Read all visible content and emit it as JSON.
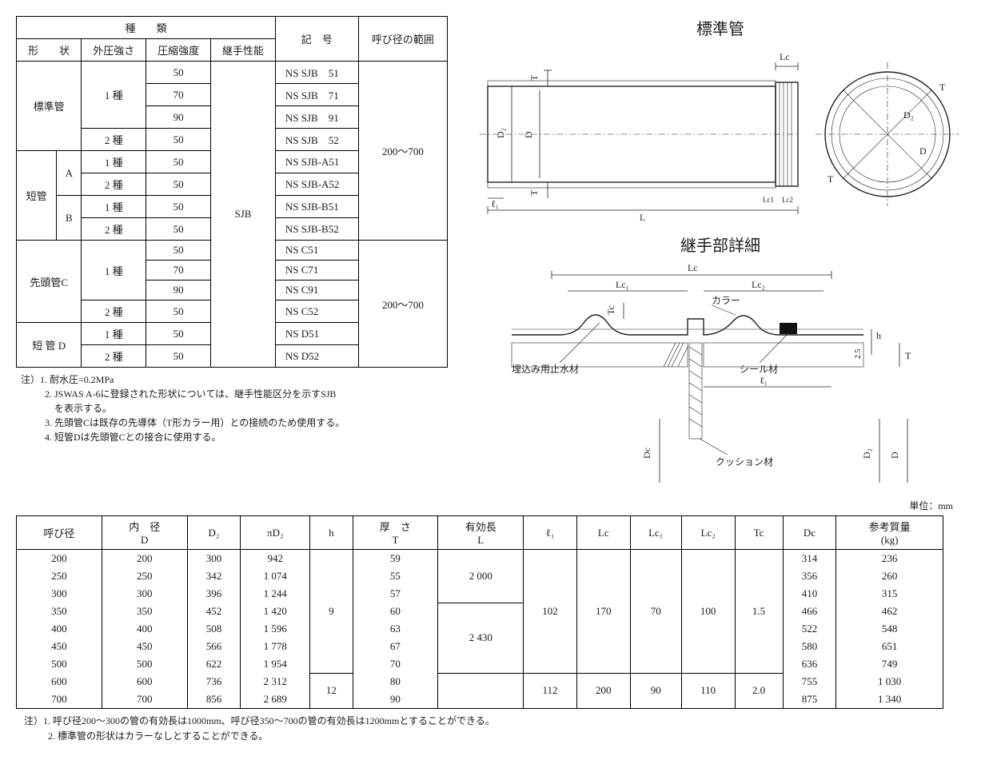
{
  "table1": {
    "headers": {
      "group": "種　　類",
      "shape": "形　　状",
      "ext_strength": "外圧強さ",
      "comp_strength": "圧縮強度",
      "joint_perf": "継手性能",
      "symbol": "記　号",
      "diam_range": "呼び径の範囲"
    },
    "rows": [
      {
        "shape": "標準管",
        "ext": "1 種",
        "comp": "50",
        "symbol": "NS SJB　51"
      },
      {
        "shape": "",
        "ext": "",
        "comp": "70",
        "symbol": "NS SJB　71"
      },
      {
        "shape": "",
        "ext": "",
        "comp": "90",
        "symbol": "NS SJB　91"
      },
      {
        "shape": "",
        "ext": "2 種",
        "comp": "50",
        "symbol": "NS SJB　52"
      },
      {
        "shape": "短管",
        "sub": "A",
        "ext": "1 種",
        "comp": "50",
        "symbol": "NS SJB-A51"
      },
      {
        "shape": "",
        "sub": "",
        "ext": "2 種",
        "comp": "50",
        "symbol": "NS SJB-A52"
      },
      {
        "shape": "",
        "sub": "B",
        "ext": "1 種",
        "comp": "50",
        "symbol": "NS SJB-B51"
      },
      {
        "shape": "",
        "sub": "",
        "ext": "2 種",
        "comp": "50",
        "symbol": "NS SJB-B52"
      },
      {
        "shape": "先頭管C",
        "ext": "1 種",
        "comp": "50",
        "symbol": "NS C51"
      },
      {
        "shape": "",
        "ext": "",
        "comp": "70",
        "symbol": "NS C71"
      },
      {
        "shape": "",
        "ext": "",
        "comp": "90",
        "symbol": "NS C91"
      },
      {
        "shape": "",
        "ext": "2 種",
        "comp": "50",
        "symbol": "NS C52"
      },
      {
        "shape": "短 管 D",
        "ext": "1 種",
        "comp": "50",
        "symbol": "NS D51"
      },
      {
        "shape": "",
        "ext": "2 種",
        "comp": "50",
        "symbol": "NS D52"
      }
    ],
    "joint_value": "SJB",
    "range1": "200～700",
    "range2": "200～700"
  },
  "notes1": {
    "prefix": "注）",
    "l1": "1. 耐水圧=0.2MPa",
    "l2a": "2. JSWAS A-6に登録された形状については、継手性能区分を示すSJB",
    "l2b": "を表示する。",
    "l3": "3. 先頭管Cは既存の先導体（T形カラー用）との接続のため使用する。",
    "l4": "4. 短管Dは先頭管Cとの接合に使用する。"
  },
  "diagrams": {
    "title_top": "標準管",
    "title_joint": "継手部詳細",
    "labels": {
      "T": "T",
      "D": "D",
      "D2": "D₂",
      "Lc": "Lc",
      "Lc1": "Lc₁",
      "Lc_small_1": "Lc1",
      "Lc_small_2": "Lc2",
      "Lc2": "Lc₂",
      "L": "L",
      "l1": "ℓ₁",
      "Tc": "Tc",
      "h": "h",
      "Dc": "Dc",
      "val25": "2.5",
      "collar": "カラー",
      "seal": "シール材",
      "cushion": "クッション材",
      "waterstop": "埋込み用止水材"
    }
  },
  "unit_label": "単位：mm",
  "table2": {
    "headers": [
      "呼び径",
      "内　径\nD",
      "D₂",
      "πD₂",
      "h",
      "厚　さ\nT",
      "有効長\nL",
      "ℓ₁",
      "Lc",
      "Lc₁",
      "Lc₂",
      "Tc",
      "Dc",
      "参考質量\n(kg)"
    ],
    "rows": [
      [
        "200",
        "200",
        "300",
        "942",
        "",
        "59",
        "",
        "",
        "",
        "",
        "",
        "",
        "314",
        "236"
      ],
      [
        "250",
        "250",
        "342",
        "1 074",
        "",
        "55",
        "2 000",
        "",
        "",
        "",
        "",
        "",
        "356",
        "260"
      ],
      [
        "300",
        "300",
        "396",
        "1 244",
        "",
        "57",
        "",
        "",
        "",
        "",
        "",
        "",
        "410",
        "315"
      ],
      [
        "350",
        "350",
        "452",
        "1 420",
        "9",
        "60",
        "",
        "102",
        "170",
        "70",
        "100",
        "1.5",
        "466",
        "462"
      ],
      [
        "400",
        "400",
        "508",
        "1 596",
        "",
        "63",
        "",
        "",
        "",
        "",
        "",
        "",
        "522",
        "548"
      ],
      [
        "450",
        "450",
        "566",
        "1 778",
        "",
        "67",
        "2 430",
        "",
        "",
        "",
        "",
        "",
        "580",
        "651"
      ],
      [
        "500",
        "500",
        "622",
        "1 954",
        "",
        "70",
        "",
        "",
        "",
        "",
        "",
        "",
        "636",
        "749"
      ],
      [
        "600",
        "600",
        "736",
        "2 312",
        "12",
        "80",
        "",
        "112",
        "200",
        "90",
        "110",
        "2.0",
        "755",
        "1 030"
      ],
      [
        "700",
        "700",
        "856",
        "2 689",
        "",
        "90",
        "",
        "",
        "",
        "",
        "",
        "",
        "875",
        "1 340"
      ]
    ]
  },
  "notes2": {
    "prefix": "注）",
    "l1": "1. 呼び径200～300の管の有効長は1000mm、呼び径350～700の管の有効長は1200mmとすることができる。",
    "l2": "2. 標準管の形状はカラーなしとすることができる。"
  },
  "style": {
    "border_color": "#000000",
    "text_color": "#1a1a1a",
    "bg": "#ffffff"
  }
}
